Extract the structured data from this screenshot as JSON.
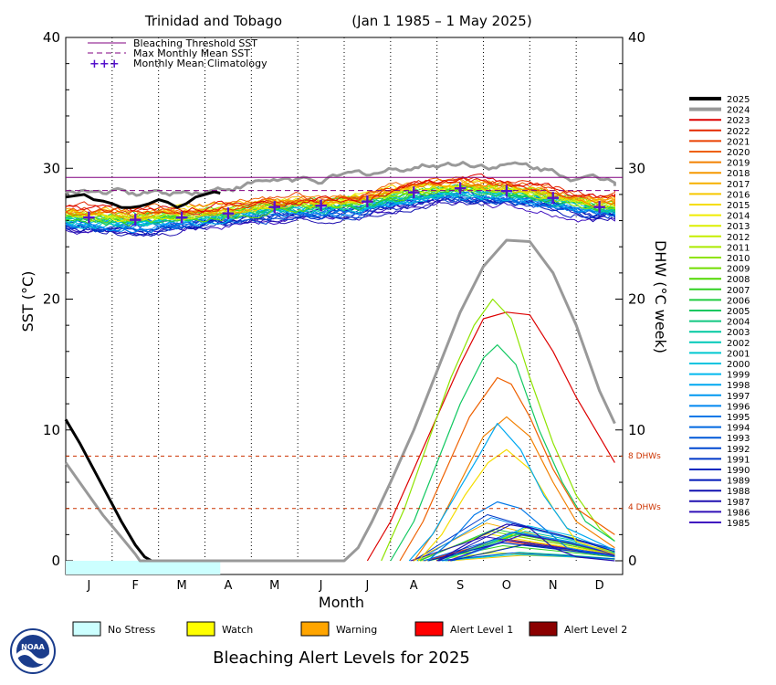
{
  "chart_data": {
    "type": "line",
    "title": "Trinidad and Tobago",
    "subtitle": "(Jan 1 1985 – 1 May 2025)",
    "xlabel": "Month",
    "ylabel_left": "SST (°C)",
    "ylabel_right": "DHW (°C week)",
    "ylim": [
      0,
      40
    ],
    "y_ticks": [
      0,
      10,
      20,
      30,
      40
    ],
    "months": [
      "J",
      "F",
      "M",
      "A",
      "M",
      "J",
      "J",
      "A",
      "S",
      "O",
      "N",
      "D"
    ],
    "bleaching_threshold_sst": 29.3,
    "max_monthly_mean_sst": 28.3,
    "dhw_reference_lines": [
      {
        "value": 8,
        "label": "8 DHWs"
      },
      {
        "value": 4,
        "label": "4 DHWs"
      }
    ],
    "monthly_mean_climatology": [
      26.3,
      26.1,
      26.3,
      26.6,
      27.1,
      27.2,
      27.5,
      28.2,
      28.5,
      28.3,
      27.8,
      27.1
    ],
    "legend_lines": [
      {
        "label": "Bleaching Threshold SST",
        "color": "#800080"
      },
      {
        "label": "Max Monthly Mean SST",
        "color": "#800080"
      },
      {
        "label": "Monthly Mean Climatology",
        "color": "#5511cc"
      }
    ],
    "years": [
      "2025",
      "2024",
      "2023",
      "2022",
      "2021",
      "2020",
      "2019",
      "2018",
      "2017",
      "2016",
      "2015",
      "2014",
      "2013",
      "2012",
      "2011",
      "2010",
      "2009",
      "2008",
      "2007",
      "2006",
      "2005",
      "2004",
      "2003",
      "2002",
      "2001",
      "2000",
      "1999",
      "1998",
      "1997",
      "1996",
      "1995",
      "1994",
      "1993",
      "1992",
      "1991",
      "1990",
      "1989",
      "1988",
      "1987",
      "1986",
      "1985"
    ],
    "year_colors": [
      "#000000",
      "#999999",
      "#dd0000",
      "#e42800",
      "#ea4000",
      "#ee6000",
      "#f28000",
      "#f59800",
      "#f6b000",
      "#f7c800",
      "#f5dd00",
      "#f0ec00",
      "#dcef00",
      "#c5ee00",
      "#aaea00",
      "#8ee400",
      "#70de00",
      "#50d800",
      "#30d020",
      "#20cc40",
      "#10c860",
      "#10c680",
      "#00c8a0",
      "#00c8b8",
      "#00c8d0",
      "#00c4e0",
      "#00b8ee",
      "#00a8f0",
      "#0098f0",
      "#0088f0",
      "#0078e8",
      "#0068e0",
      "#0058d8",
      "#0048d0",
      "#0038c8",
      "#0028c0",
      "#0018b8",
      "#1010b0",
      "#2010b0",
      "#3010b8",
      "#4010c0"
    ],
    "sst_2025": [
      [
        0.0,
        27.8
      ],
      [
        0.2,
        27.9
      ],
      [
        0.4,
        28.0
      ],
      [
        0.6,
        27.6
      ],
      [
        0.8,
        27.5
      ],
      [
        1.0,
        27.3
      ],
      [
        1.2,
        27.0
      ],
      [
        1.4,
        27.0
      ],
      [
        1.6,
        27.1
      ],
      [
        1.8,
        27.3
      ],
      [
        2.0,
        27.6
      ],
      [
        2.2,
        27.4
      ],
      [
        2.4,
        27.0
      ],
      [
        2.6,
        27.3
      ],
      [
        2.8,
        27.8
      ],
      [
        3.0,
        28.0
      ],
      [
        3.2,
        28.2
      ],
      [
        3.33,
        28.1
      ]
    ],
    "dhw_2025": [
      [
        0.0,
        10.8
      ],
      [
        0.3,
        9.0
      ],
      [
        0.6,
        7.0
      ],
      [
        0.9,
        5.0
      ],
      [
        1.2,
        3.0
      ],
      [
        1.5,
        1.2
      ],
      [
        1.7,
        0.3
      ],
      [
        1.85,
        0.0
      ],
      [
        3.33,
        0.0
      ]
    ],
    "dhw_2024": [
      [
        0.0,
        7.5
      ],
      [
        0.4,
        5.5
      ],
      [
        0.8,
        3.5
      ],
      [
        1.2,
        1.8
      ],
      [
        1.5,
        0.5
      ],
      [
        1.6,
        0.0
      ],
      [
        6.0,
        0.0
      ],
      [
        6.3,
        1.0
      ],
      [
        6.6,
        3.0
      ],
      [
        7.0,
        6.0
      ],
      [
        7.5,
        10.0
      ],
      [
        8.0,
        14.5
      ],
      [
        8.5,
        19.0
      ],
      [
        9.0,
        22.5
      ],
      [
        9.5,
        24.5
      ],
      [
        10.0,
        24.4
      ],
      [
        10.5,
        22.0
      ],
      [
        11.0,
        18.0
      ],
      [
        11.5,
        13.0
      ],
      [
        11.83,
        10.5
      ]
    ],
    "dhw_2023": [
      [
        6.5,
        0.0
      ],
      [
        7.0,
        3.0
      ],
      [
        7.5,
        7.0
      ],
      [
        8.0,
        11.0
      ],
      [
        8.5,
        15.0
      ],
      [
        9.0,
        18.5
      ],
      [
        9.5,
        19.0
      ],
      [
        10.0,
        18.8
      ],
      [
        10.5,
        16.0
      ],
      [
        11.0,
        12.5
      ],
      [
        11.5,
        9.5
      ],
      [
        11.83,
        7.5
      ]
    ],
    "dhw_2010": [
      [
        6.8,
        0.0
      ],
      [
        7.3,
        4.0
      ],
      [
        7.8,
        9.0
      ],
      [
        8.3,
        14.0
      ],
      [
        8.8,
        18.0
      ],
      [
        9.2,
        20.0
      ],
      [
        9.6,
        18.5
      ],
      [
        10.0,
        14.0
      ],
      [
        10.5,
        9.0
      ],
      [
        11.0,
        5.0
      ],
      [
        11.5,
        2.5
      ],
      [
        11.83,
        1.5
      ]
    ],
    "dhw_2005": [
      [
        7.0,
        0.0
      ],
      [
        7.5,
        3.0
      ],
      [
        8.0,
        7.5
      ],
      [
        8.5,
        12.0
      ],
      [
        9.0,
        15.5
      ],
      [
        9.3,
        16.5
      ],
      [
        9.7,
        15.0
      ],
      [
        10.2,
        10.0
      ],
      [
        10.7,
        6.0
      ],
      [
        11.2,
        3.0
      ],
      [
        11.83,
        1.5
      ]
    ],
    "dhw_2020": [
      [
        7.2,
        0.0
      ],
      [
        7.7,
        3.0
      ],
      [
        8.2,
        7.0
      ],
      [
        8.7,
        11.0
      ],
      [
        9.3,
        14.0
      ],
      [
        9.6,
        13.5
      ],
      [
        10.0,
        11.0
      ],
      [
        10.5,
        7.0
      ],
      [
        11.0,
        4.0
      ],
      [
        11.83,
        2.0
      ]
    ],
    "dhw_2019": [
      [
        7.5,
        0.0
      ],
      [
        8.0,
        2.5
      ],
      [
        8.5,
        6.0
      ],
      [
        9.0,
        9.5
      ],
      [
        9.5,
        11.0
      ],
      [
        10.0,
        9.5
      ],
      [
        10.5,
        6.0
      ],
      [
        11.0,
        3.0
      ],
      [
        11.83,
        1.0
      ]
    ],
    "dhw_2015": [
      [
        7.6,
        0.0
      ],
      [
        8.1,
        2.0
      ],
      [
        8.6,
        5.0
      ],
      [
        9.1,
        7.5
      ],
      [
        9.5,
        8.5
      ],
      [
        10.0,
        7.0
      ],
      [
        10.5,
        4.0
      ],
      [
        11.0,
        1.5
      ],
      [
        11.83,
        0.5
      ]
    ],
    "dhw_1998": [
      [
        7.4,
        0.0
      ],
      [
        7.9,
        2.0
      ],
      [
        8.4,
        5.0
      ],
      [
        8.9,
        8.0
      ],
      [
        9.3,
        10.5
      ],
      [
        9.8,
        8.5
      ],
      [
        10.3,
        5.0
      ],
      [
        10.8,
        2.5
      ],
      [
        11.83,
        0.8
      ]
    ],
    "dhw_1995": [
      [
        7.8,
        0.0
      ],
      [
        8.3,
        1.5
      ],
      [
        8.8,
        3.5
      ],
      [
        9.3,
        4.5
      ],
      [
        9.8,
        4.0
      ],
      [
        10.3,
        2.5
      ],
      [
        10.8,
        1.0
      ],
      [
        11.83,
        0.3
      ]
    ],
    "dhw_1987": [
      [
        8.0,
        0.0
      ],
      [
        8.5,
        1.0
      ],
      [
        9.0,
        2.0
      ],
      [
        9.5,
        2.8
      ],
      [
        10.0,
        2.5
      ],
      [
        10.5,
        1.0
      ],
      [
        11.0,
        0.3
      ],
      [
        11.83,
        0.0
      ]
    ]
  },
  "legend_boxes": [
    {
      "label": "No Stress",
      "color": "#ccffff"
    },
    {
      "label": "Watch",
      "color": "#ffff00"
    },
    {
      "label": "Warning",
      "color": "#ffa500"
    },
    {
      "label": "Alert Level 1",
      "color": "#ff0000"
    },
    {
      "label": "Alert Level 2",
      "color": "#8b0000"
    }
  ],
  "alert_bar": {
    "no_stress_until_month": 3.33,
    "color": "#ccffff"
  },
  "footer": "Bleaching Alert Levels for 2025",
  "logo_text": "NOAA"
}
